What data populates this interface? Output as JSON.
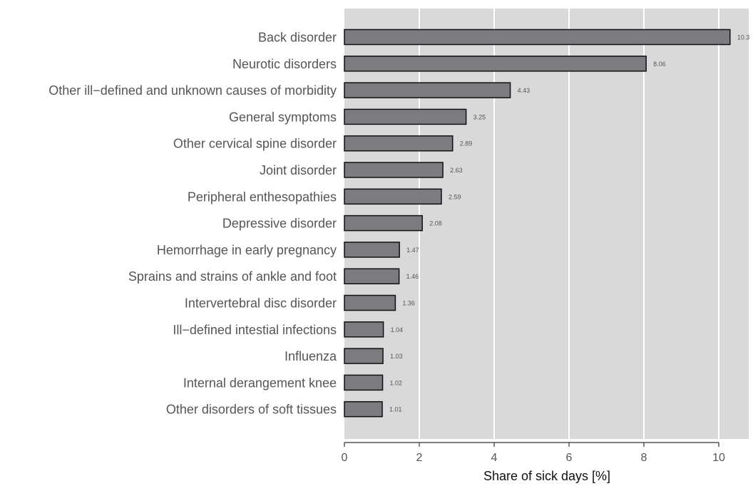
{
  "chart_data": {
    "type": "bar",
    "orientation": "horizontal",
    "categories": [
      "Back disorder",
      "Neurotic disorders",
      "Other ill−defined and unknown causes of morbidity",
      "General symptoms",
      "Other cervical spine disorder",
      "Joint disorder",
      "Peripheral enthesopathies",
      "Depressive disorder",
      "Hemorrhage in early pregnancy",
      "Sprains and strains of ankle and foot",
      "Intervertebral disc disorder",
      "Ill−defined intestial infections",
      "Influenza",
      "Internal derangement knee",
      "Other disorders of soft tissues"
    ],
    "values": [
      10.3,
      8.06,
      4.43,
      3.25,
      2.89,
      2.63,
      2.59,
      2.08,
      1.47,
      1.46,
      1.36,
      1.04,
      1.03,
      1.02,
      1.01
    ],
    "value_labels": [
      "10.3",
      "8.06",
      "4.43",
      "3.25",
      "2.89",
      "2.63",
      "2.59",
      "2.08",
      "1.47",
      "1.46",
      "1.36",
      "1.04",
      "1.03",
      "1.02",
      "1.01"
    ],
    "xlabel": "Share of sick days [%]",
    "ylabel": "",
    "xlim": [
      0,
      10.8
    ],
    "xticks": [
      0,
      2,
      4,
      6,
      8,
      10
    ],
    "xtick_labels": [
      "0",
      "2",
      "4",
      "6",
      "8",
      "10"
    ],
    "grid": "vertical",
    "colors": {
      "panel": "#d9d9da",
      "bar_fill": "#7b7b80",
      "bar_stroke": "#111111",
      "grid": "#ffffff"
    }
  }
}
